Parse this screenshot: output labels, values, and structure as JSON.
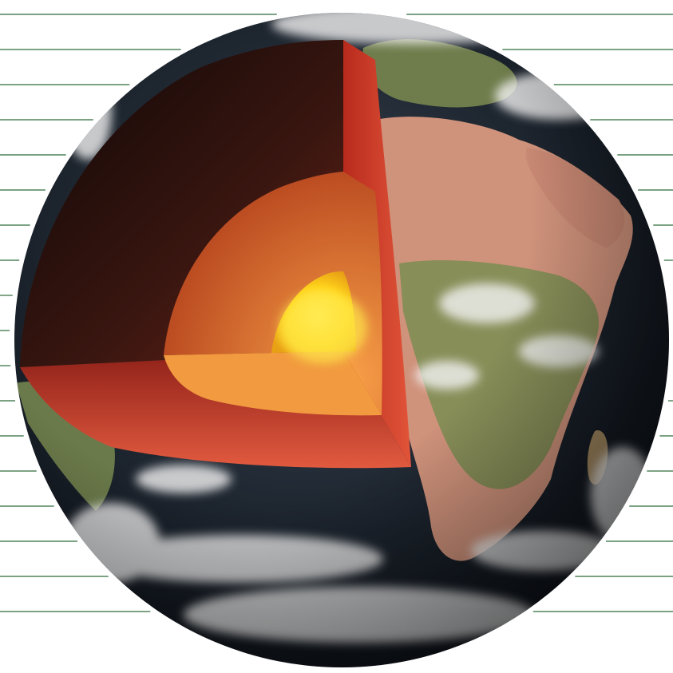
{
  "figure": {
    "subject": "earth-layers-cutaway",
    "layers": [
      {
        "name": "crust",
        "color": "#3a2a22"
      },
      {
        "name": "mantle",
        "color": "#d63a22"
      },
      {
        "name": "outer-core",
        "color": "#f08a2a"
      },
      {
        "name": "inner-core",
        "color": "#ffd21a"
      }
    ],
    "surface_colors": {
      "ocean": "#1e2630",
      "land_desert": "#d79a84",
      "land_green": "#7e8f55",
      "cloud": "#f3f3f3"
    },
    "label_line_color": "#2f6b3a",
    "label_line_count": 36
  }
}
